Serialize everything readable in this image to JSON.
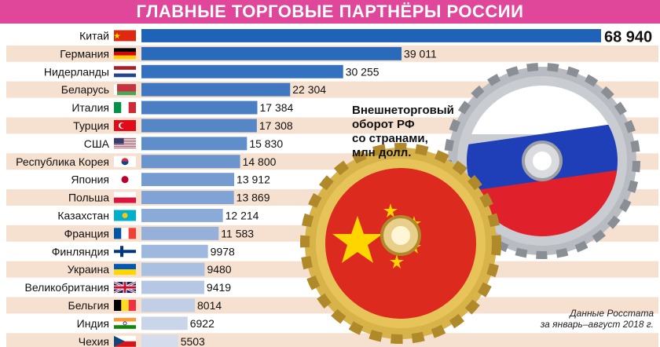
{
  "header": {
    "title": "ГЛАВНЫЕ ТОРГОВЫЕ ПАРТНЁРЫ РОССИИ"
  },
  "legend": {
    "text": "Внешнеторговый\nоборот РФ\nсо странами,\nмлн долл."
  },
  "source": {
    "line1": "Данные Росстата",
    "line2": "за январь–август 2018 г."
  },
  "colors": {
    "title_bg": "#e0479b",
    "stripe": "#f6e0cf",
    "bar_dark": "#1f63b8",
    "bar_light": "#d5dcec"
  },
  "illustration": {
    "gear_left": "gear-with-chinese-flag",
    "gear_right": "gear-with-russian-flag"
  },
  "chart_data": {
    "type": "bar",
    "orientation": "horizontal",
    "categories": [
      "Китай",
      "Германия",
      "Нидерланды",
      "Беларусь",
      "Италия",
      "Турция",
      "США",
      "Республика Корея",
      "Япония",
      "Польша",
      "Казахстан",
      "Франция",
      "Финляндия",
      "Украина",
      "Великобритания",
      "Бельгия",
      "Индия",
      "Чехия"
    ],
    "values": [
      68940,
      39011,
      30255,
      22304,
      17384,
      17308,
      15830,
      14800,
      13912,
      13869,
      12214,
      11583,
      9978,
      9480,
      9419,
      8014,
      6922,
      5503
    ],
    "value_labels": [
      "68 940",
      "39 011",
      "30 255",
      "22 304",
      "17 384",
      "17 308",
      "15 830",
      "14 800",
      "13 912",
      "13 869",
      "12 214",
      "11 583",
      "9978",
      "9480",
      "9419",
      "8014",
      "6922",
      "5503"
    ],
    "flags": [
      "china",
      "germany",
      "netherlands",
      "belarus",
      "italy",
      "turkey",
      "usa",
      "south-korea",
      "japan",
      "poland",
      "kazakhstan",
      "france",
      "finland",
      "ukraine",
      "uk",
      "belgium",
      "india",
      "czech"
    ],
    "title": "ГЛАВНЫЕ ТОРГОВЫЕ ПАРТНЁРЫ РОССИИ",
    "xlabel": "",
    "ylabel": "",
    "xlim": [
      0,
      68940
    ],
    "grid": false,
    "legend": "none"
  }
}
